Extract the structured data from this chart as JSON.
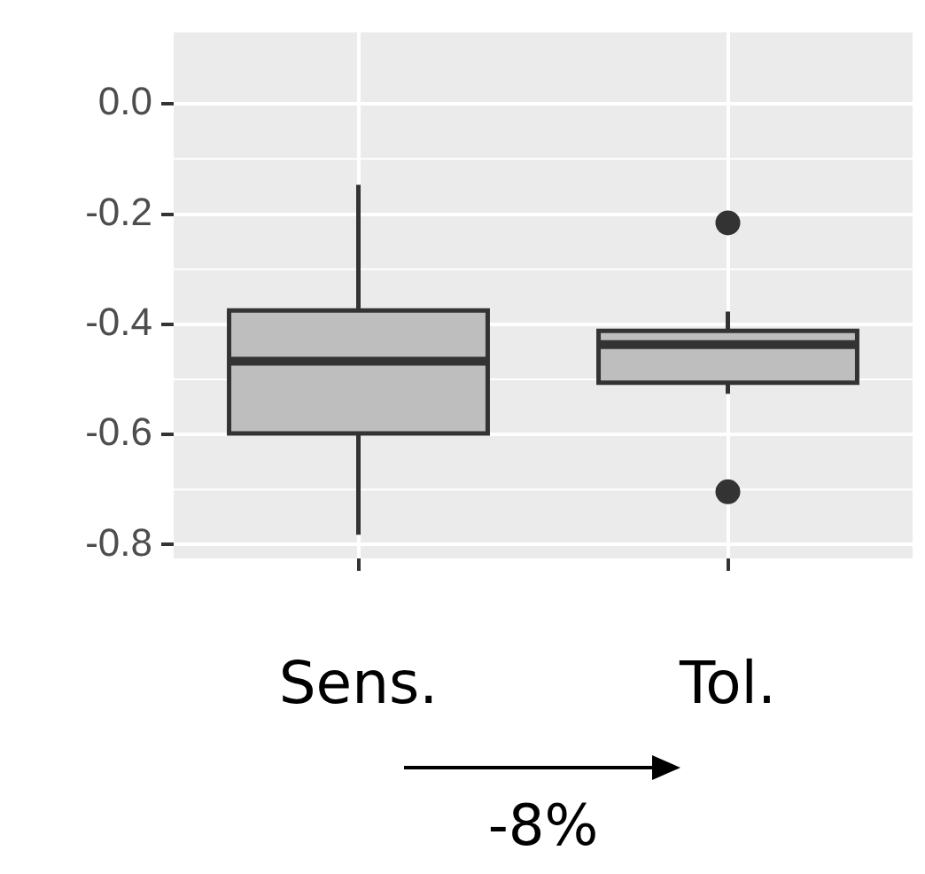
{
  "chart_data": {
    "type": "box",
    "categories": [
      "Sens.",
      "Tol."
    ],
    "series": [
      {
        "color": "#bebebe",
        "boxes": [
          {
            "low": -0.782,
            "q1": -0.598,
            "median": -0.467,
            "q3": -0.375,
            "high": -0.147
          },
          {
            "low": -0.526,
            "q1": -0.506,
            "median": -0.437,
            "q3": -0.412,
            "high": -0.377,
            "outliers": [
              -0.216,
              -0.704
            ]
          }
        ]
      }
    ],
    "ylim": [
      -0.825,
      0.13
    ],
    "yticks": [
      {
        "value": 0,
        "label": "0.0"
      },
      -0.2,
      -0.4,
      -0.6,
      -0.8
    ],
    "grid": true,
    "legend": false,
    "annotations": [
      "-8%"
    ]
  }
}
